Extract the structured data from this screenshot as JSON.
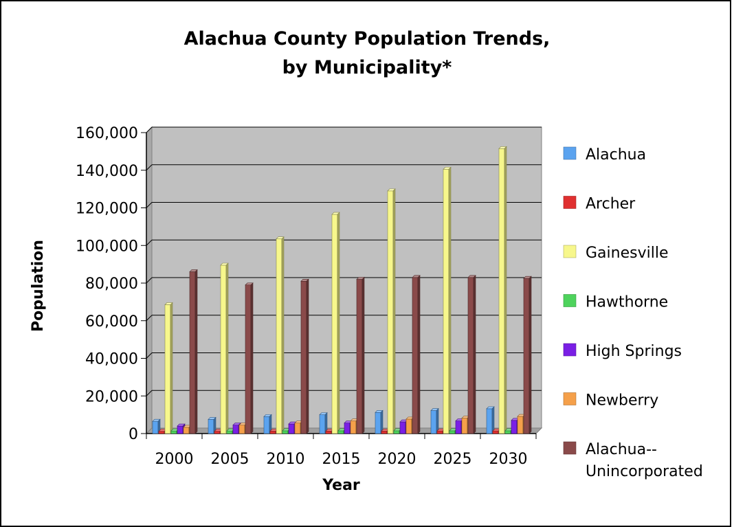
{
  "chart_data": {
    "type": "bar",
    "title_line1": "Alachua County Population Trends,",
    "title_line2": "by Municipality*",
    "xlabel": "Year",
    "ylabel": "Population",
    "categories": [
      "2000",
      "2005",
      "2010",
      "2015",
      "2020",
      "2025",
      "2030"
    ],
    "ylim": [
      0,
      160000
    ],
    "yticks": [
      0,
      20000,
      40000,
      60000,
      80000,
      100000,
      120000,
      140000,
      160000
    ],
    "ytick_labels": [
      "0",
      "20,000",
      "40,000",
      "60,000",
      "80,000",
      "100,000",
      "120,000",
      "140,000",
      "160,000"
    ],
    "grid": true,
    "legend_position": "right",
    "series": [
      {
        "name": "Alachua",
        "color": "#5ba3ef",
        "values": [
          6500,
          7500,
          9000,
          10000,
          11200,
          12200,
          13200
        ]
      },
      {
        "name": "Archer",
        "color": "#e03030",
        "values": [
          1200,
          1200,
          1300,
          1300,
          1300,
          1400,
          1400
        ]
      },
      {
        "name": "Gainesville",
        "color": "#f7f78c",
        "values": [
          68500,
          89500,
          103500,
          116500,
          129000,
          140500,
          151500
        ]
      },
      {
        "name": "Hawthorne",
        "color": "#4ed35c",
        "values": [
          1400,
          1400,
          1500,
          1500,
          1500,
          1500,
          1500
        ]
      },
      {
        "name": "High Springs",
        "color": "#7a1fe5",
        "values": [
          4000,
          4500,
          5100,
          5600,
          6200,
          6700,
          7000
        ]
      },
      {
        "name": "Newberry",
        "color": "#f5a04a",
        "values": [
          3300,
          4500,
          5600,
          6700,
          7700,
          8200,
          9100
        ]
      },
      {
        "name": "Alachua--Unincorporated",
        "legend_lines": [
          "Alachua--",
          "Unincorporated"
        ],
        "color": "#8a4a4a",
        "values": [
          86000,
          79000,
          81000,
          82000,
          83000,
          83000,
          82500
        ]
      }
    ]
  }
}
